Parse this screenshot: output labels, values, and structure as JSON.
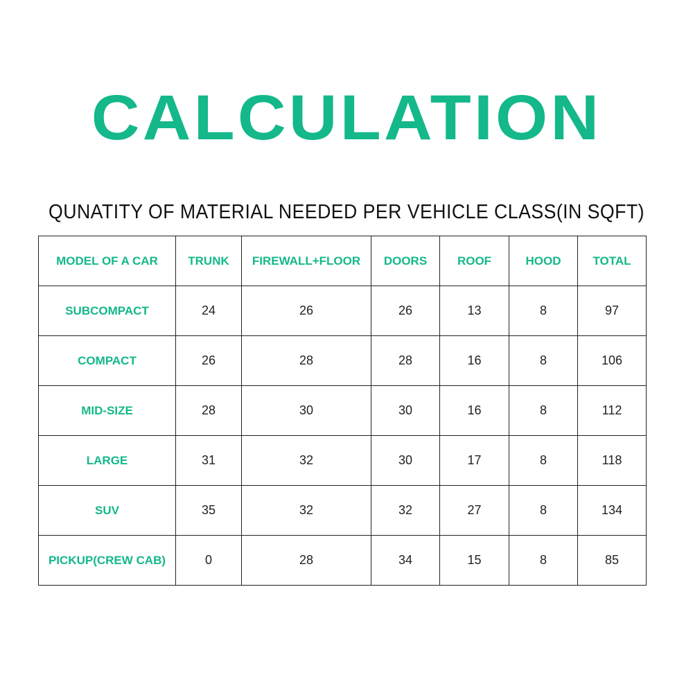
{
  "title": "CALCULATION",
  "subtitle": "QUNATITY OF MATERIAL NEEDED PER VEHICLE CLASS(IN SQFT)",
  "accent_color": "#14b88a",
  "table": {
    "headers": [
      "MODEL OF A CAR",
      "TRUNK",
      "FIREWALL+FLOOR",
      "DOORS",
      "ROOF",
      "HOOD",
      "TOTAL"
    ],
    "rows": [
      [
        "SUBCOMPACT",
        "24",
        "26",
        "26",
        "13",
        "8",
        "97"
      ],
      [
        "COMPACT",
        "26",
        "28",
        "28",
        "16",
        "8",
        "106"
      ],
      [
        "MID-SIZE",
        "28",
        "30",
        "30",
        "16",
        "8",
        "112"
      ],
      [
        "LARGE",
        "31",
        "32",
        "30",
        "17",
        "8",
        "118"
      ],
      [
        "SUV",
        "35",
        "32",
        "32",
        "27",
        "8",
        "134"
      ],
      [
        "PICKUP(CREW CAB)",
        "0",
        "28",
        "34",
        "15",
        "8",
        "85"
      ]
    ]
  }
}
